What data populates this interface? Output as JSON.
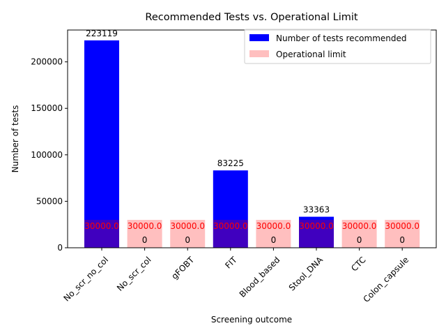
{
  "chart_data": {
    "type": "bar",
    "title": "Recommended Tests vs. Operational Limit",
    "xlabel": "Screening outcome",
    "ylabel": "Number of tests",
    "categories": [
      "No_scr_no_col",
      "No_scr_col",
      "gFOBT",
      "FIT",
      "Blood_based",
      "Stool_DNA",
      "CTC",
      "Colon_capsule"
    ],
    "ylim": [
      0,
      234275
    ],
    "yticks": [
      0,
      50000,
      100000,
      150000,
      200000
    ],
    "legend_position": "upper right",
    "grid": false,
    "series": [
      {
        "name": "Number of tests recommended",
        "color": "#0000ff",
        "values": [
          223119,
          0,
          0,
          83225,
          0,
          33363,
          0,
          0
        ],
        "labels": [
          "223119",
          "0",
          "0",
          "83225",
          "0",
          "33363",
          "0",
          "0"
        ]
      },
      {
        "name": "Operational limit",
        "color": "#ff0000",
        "opacity": 0.25,
        "label_color": "#ff0000",
        "values": [
          30000,
          30000,
          30000,
          30000,
          30000,
          30000,
          30000,
          30000
        ],
        "labels": [
          "30000.0",
          "30000.0",
          "30000.0",
          "30000.0",
          "30000.0",
          "30000.0",
          "30000.0",
          "30000.0"
        ]
      }
    ]
  }
}
